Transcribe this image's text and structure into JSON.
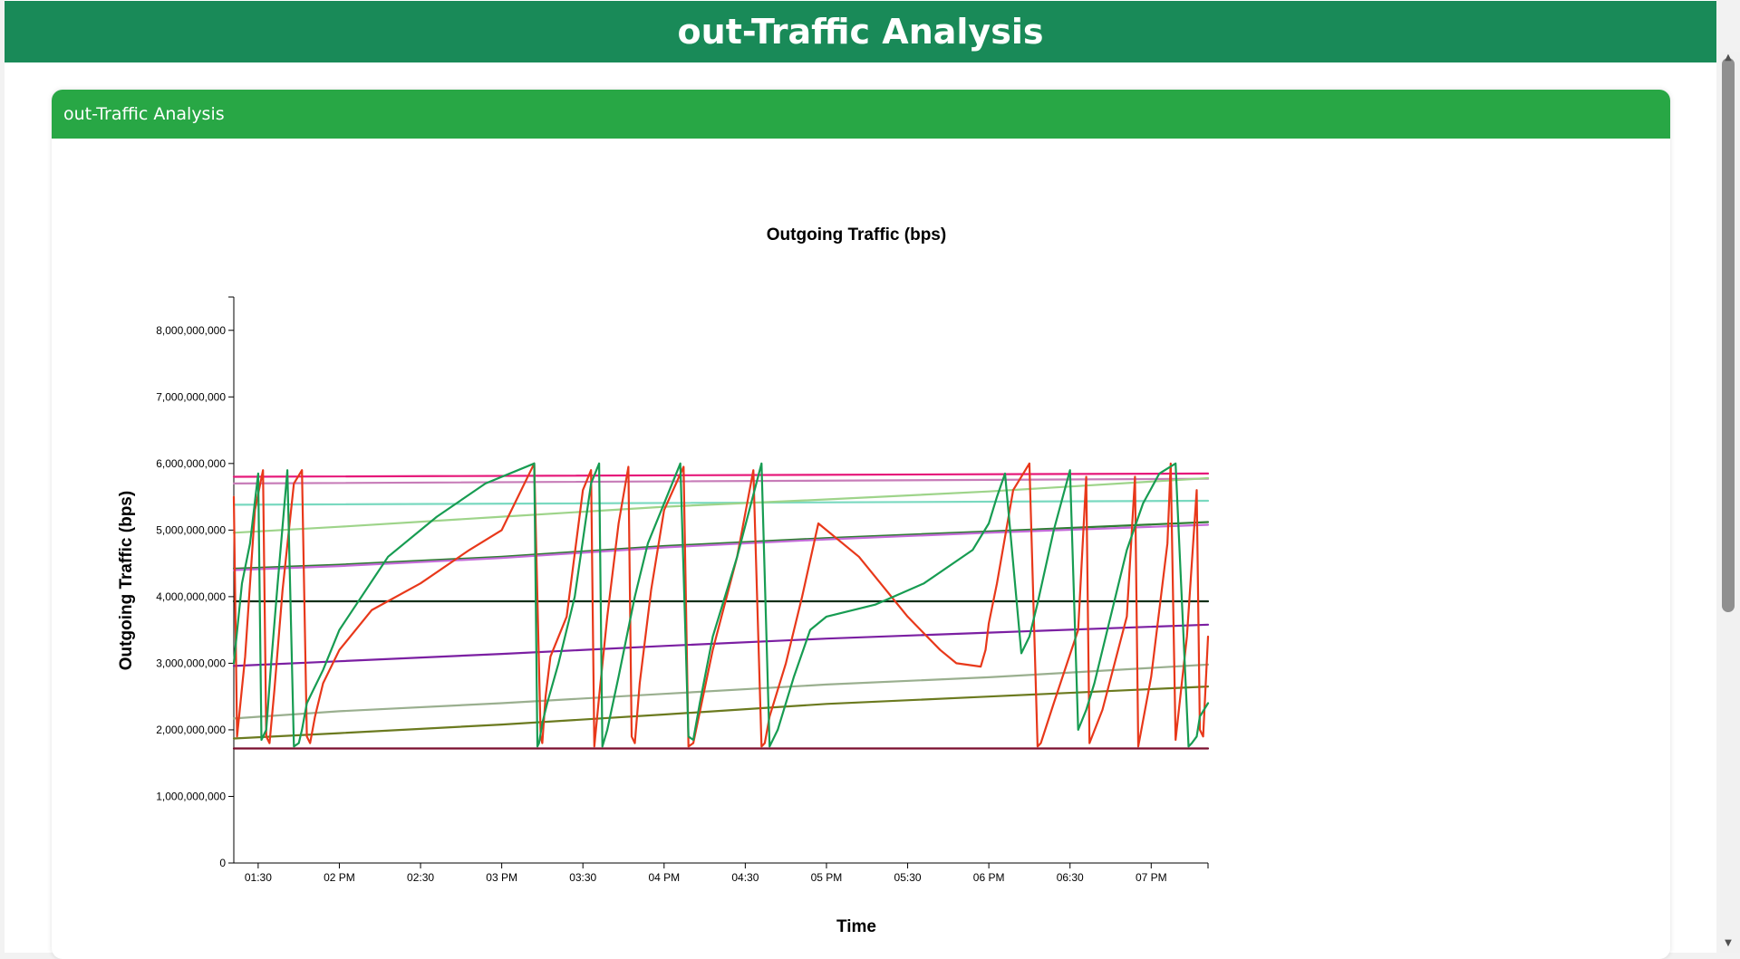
{
  "header": {
    "title": "out-Traffic Analysis"
  },
  "card": {
    "title": "out-Traffic Analysis"
  },
  "chart_data": {
    "type": "line",
    "title": "Outgoing Traffic (bps)",
    "xlabel": "Time",
    "ylabel": "Outgoing Traffic (bps)",
    "x_unit": "hours",
    "xlim": [
      13.35,
      19.35
    ],
    "ylim": [
      0,
      8500000000
    ],
    "yticks": [
      0,
      1000000000,
      2000000000,
      3000000000,
      4000000000,
      5000000000,
      6000000000,
      7000000000,
      8000000000
    ],
    "ytick_labels": [
      "0",
      "1,000,000,000",
      "2,000,000,000",
      "3,000,000,000",
      "4,000,000,000",
      "5,000,000,000",
      "6,000,000,000",
      "7,000,000,000",
      "8,000,000,000"
    ],
    "xticks": [
      13.5,
      14,
      14.5,
      15,
      15.5,
      16,
      16.5,
      17,
      17.5,
      18,
      18.5,
      19
    ],
    "xtick_labels": [
      "01:30",
      "02 PM",
      "02:30",
      "03 PM",
      "03:30",
      "04 PM",
      "04:30",
      "05 PM",
      "05:30",
      "06 PM",
      "06:30",
      "07 PM"
    ],
    "grid": false,
    "series": [
      {
        "color": "#e6197a",
        "x": [
          13.35,
          19.35
        ],
        "y": [
          5800000000,
          5850000000
        ]
      },
      {
        "color": "#c77cb8",
        "x": [
          13.35,
          19.35
        ],
        "y": [
          5700000000,
          5770000000
        ]
      },
      {
        "color": "#7ad9c0",
        "x": [
          13.35,
          19.35
        ],
        "y": [
          5380000000,
          5440000000
        ]
      },
      {
        "color": "#9ed48a",
        "x": [
          13.35,
          14.0,
          15.0,
          16.0,
          17.0,
          18.0,
          19.35
        ],
        "y": [
          4960000000,
          5050000000,
          5200000000,
          5350000000,
          5460000000,
          5580000000,
          5780000000
        ]
      },
      {
        "color": "#2e7d32",
        "x": [
          13.35,
          14.0,
          15.0,
          16.0,
          17.0,
          18.0,
          19.35
        ],
        "y": [
          4420000000,
          4480000000,
          4600000000,
          4760000000,
          4880000000,
          4980000000,
          5120000000
        ]
      },
      {
        "color": "#c46bd9",
        "x": [
          13.35,
          14.0,
          15.0,
          16.0,
          17.0,
          18.0,
          19.35
        ],
        "y": [
          4400000000,
          4460000000,
          4580000000,
          4740000000,
          4860000000,
          4960000000,
          5080000000
        ]
      },
      {
        "color": "#0d2e17",
        "x": [
          13.35,
          19.35
        ],
        "y": [
          3930000000,
          3930000000
        ]
      },
      {
        "color": "#7b1fa2",
        "x": [
          13.35,
          14.0,
          15.0,
          16.0,
          17.0,
          18.0,
          19.35
        ],
        "y": [
          2960000000,
          3030000000,
          3140000000,
          3260000000,
          3370000000,
          3460000000,
          3580000000
        ]
      },
      {
        "color": "#9aaf8f",
        "x": [
          13.35,
          14.0,
          15.0,
          16.0,
          17.0,
          18.0,
          19.35
        ],
        "y": [
          2170000000,
          2280000000,
          2400000000,
          2540000000,
          2680000000,
          2790000000,
          2980000000
        ]
      },
      {
        "color": "#6b7a1f",
        "x": [
          13.35,
          14.0,
          15.0,
          16.0,
          17.0,
          18.0,
          19.35
        ],
        "y": [
          1870000000,
          1950000000,
          2080000000,
          2230000000,
          2390000000,
          2500000000,
          2650000000
        ]
      },
      {
        "color": "#7a0e2e",
        "x": [
          13.35,
          19.35
        ],
        "y": [
          1720000000,
          1720000000
        ]
      },
      {
        "color": "#e8381a",
        "x": [
          13.35,
          13.37,
          13.42,
          13.48,
          13.53,
          13.55,
          13.57,
          13.6,
          13.65,
          13.72,
          13.77,
          13.8,
          13.82,
          13.85,
          13.9,
          14.0,
          14.2,
          14.5,
          14.8,
          15.0,
          15.2,
          15.24,
          15.25,
          15.27,
          15.3,
          15.4,
          15.5,
          15.55,
          15.57,
          15.6,
          15.65,
          15.72,
          15.78,
          15.8,
          15.82,
          15.85,
          15.92,
          16.0,
          16.12,
          16.15,
          16.18,
          16.3,
          16.45,
          16.55,
          16.6,
          16.62,
          16.65,
          16.75,
          16.85,
          16.95,
          17.2,
          17.5,
          17.7,
          17.8,
          17.95,
          17.98,
          18.0,
          18.05,
          18.15,
          18.25,
          18.3,
          18.32,
          18.4,
          18.55,
          18.6,
          18.62,
          18.7,
          18.85,
          18.9,
          18.92,
          19.0,
          19.1,
          19.12,
          19.15,
          19.22,
          19.28,
          19.3,
          19.32,
          19.35
        ],
        "y": [
          5500000000,
          1900000000,
          3100000000,
          5300000000,
          5900000000,
          1900000000,
          1800000000,
          2600000000,
          4100000000,
          5700000000,
          5900000000,
          1900000000,
          1800000000,
          2200000000,
          2700000000,
          3200000000,
          3800000000,
          4200000000,
          4700000000,
          5000000000,
          6000000000,
          1900000000,
          1800000000,
          2500000000,
          3100000000,
          3700000000,
          5600000000,
          5900000000,
          1750000000,
          2500000000,
          3700000000,
          5100000000,
          5950000000,
          1900000000,
          1800000000,
          2700000000,
          4100000000,
          5300000000,
          5950000000,
          1750000000,
          1800000000,
          3200000000,
          4600000000,
          5900000000,
          1750000000,
          1800000000,
          2200000000,
          3000000000,
          4000000000,
          5100000000,
          4600000000,
          3700000000,
          3200000000,
          3000000000,
          2950000000,
          3200000000,
          3600000000,
          4200000000,
          5600000000,
          6000000000,
          1750000000,
          1800000000,
          2400000000,
          3500000000,
          5800000000,
          1800000000,
          2300000000,
          3700000000,
          5800000000,
          1750000000,
          2800000000,
          4800000000,
          6000000000,
          1850000000,
          3400000000,
          5600000000,
          2000000000,
          1900000000,
          3400000000
        ]
      },
      {
        "color": "#179c52",
        "x": [
          13.35,
          13.4,
          13.45,
          13.5,
          13.52,
          13.55,
          13.58,
          13.62,
          13.68,
          13.72,
          13.75,
          13.77,
          13.8,
          13.9,
          14.0,
          14.3,
          14.6,
          14.9,
          15.2,
          15.22,
          15.23,
          15.25,
          15.28,
          15.35,
          15.45,
          15.55,
          15.6,
          15.62,
          15.65,
          15.72,
          15.82,
          15.9,
          16.1,
          16.15,
          16.18,
          16.22,
          16.3,
          16.45,
          16.6,
          16.65,
          16.7,
          16.8,
          16.9,
          17.0,
          17.3,
          17.6,
          17.9,
          18.0,
          18.05,
          18.1,
          18.2,
          18.25,
          18.3,
          18.4,
          18.5,
          18.55,
          18.6,
          18.65,
          18.75,
          18.85,
          18.95,
          19.05,
          19.15,
          19.23,
          19.25,
          19.28,
          19.3,
          19.35
        ],
        "y": [
          3000000000,
          4200000000,
          4800000000,
          5850000000,
          1850000000,
          2000000000,
          3000000000,
          4200000000,
          5900000000,
          1750000000,
          1800000000,
          2000000000,
          2400000000,
          2900000000,
          3500000000,
          4600000000,
          5200000000,
          5700000000,
          6000000000,
          1750000000,
          1800000000,
          2100000000,
          2400000000,
          3000000000,
          4000000000,
          5700000000,
          6000000000,
          1750000000,
          2000000000,
          2800000000,
          4000000000,
          4800000000,
          6000000000,
          1900000000,
          1850000000,
          2400000000,
          3400000000,
          4600000000,
          6000000000,
          1750000000,
          2000000000,
          2800000000,
          3500000000,
          3700000000,
          3880000000,
          4200000000,
          4700000000,
          5100000000,
          5500000000,
          5850000000,
          3150000000,
          3400000000,
          3900000000,
          5000000000,
          5900000000,
          2000000000,
          2300000000,
          2700000000,
          3700000000,
          4700000000,
          5400000000,
          5850000000,
          6000000000,
          1750000000,
          1800000000,
          1900000000,
          2200000000,
          2400000000
        ]
      }
    ]
  }
}
